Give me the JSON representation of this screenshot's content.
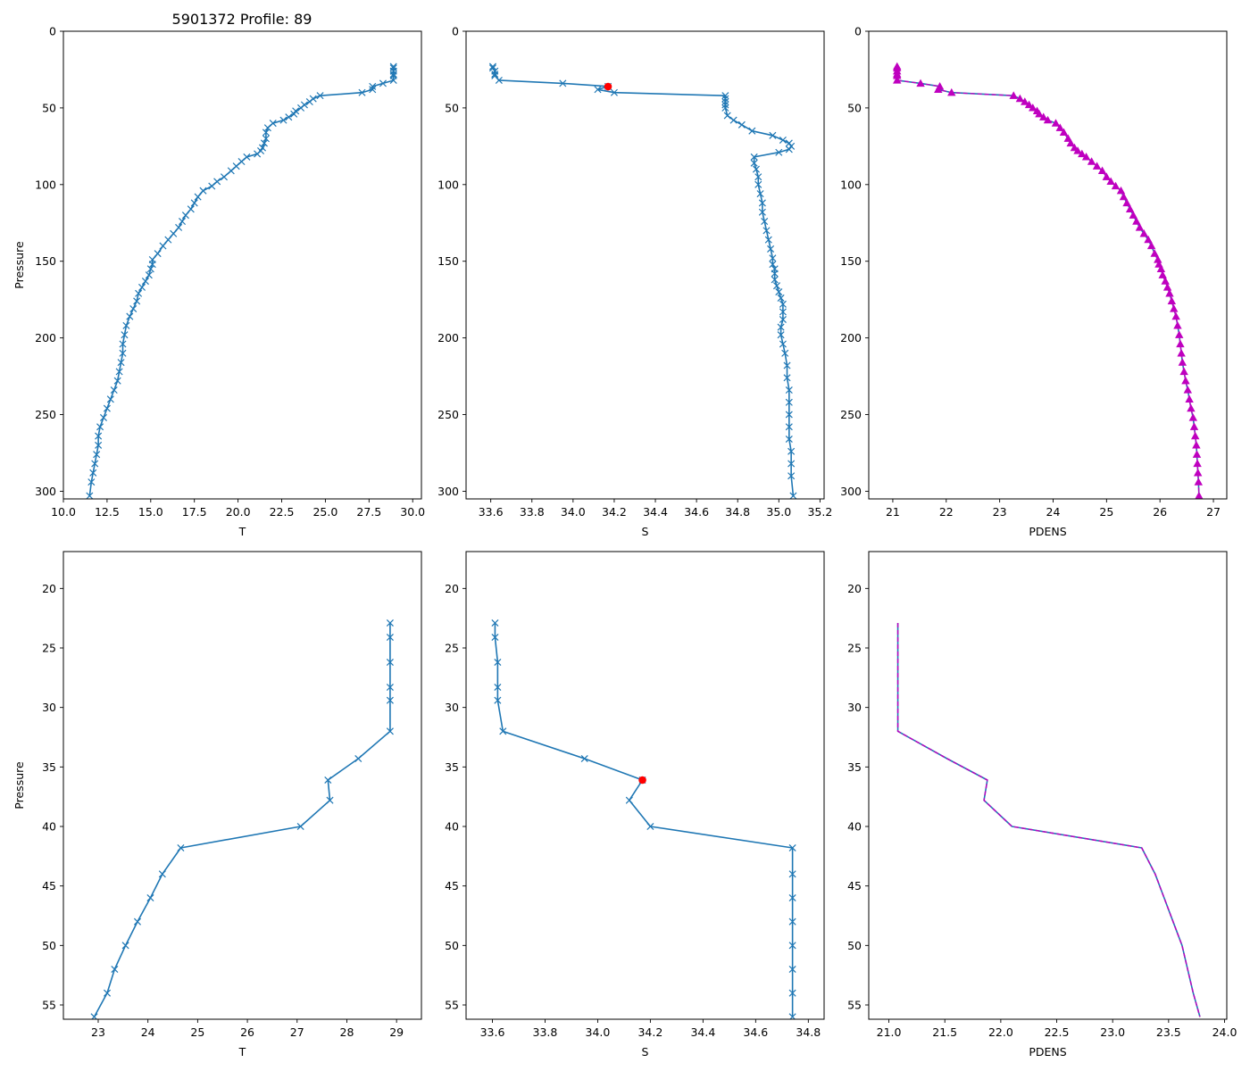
{
  "figure_title": "5901372 Profile: 89",
  "colors": {
    "series": "#1f77b4",
    "marker_highlight": "#ff0000",
    "density": "#bf00bf",
    "frame": "#000000"
  },
  "chart_data": [
    {
      "type": "line",
      "name": "temperature-full",
      "xlabel": "T",
      "ylabel": "Pressure",
      "xlim": [
        10,
        30.5
      ],
      "ylim": [
        305,
        0
      ],
      "xticks": [
        10.0,
        12.5,
        15.0,
        17.5,
        20.0,
        22.5,
        25.0,
        27.5,
        30.0
      ],
      "xtick_labels": [
        "10.0",
        "12.5",
        "15.0",
        "17.5",
        "20.0",
        "22.5",
        "25.0",
        "27.5",
        "30.0"
      ],
      "yticks": [
        0,
        50,
        100,
        150,
        200,
        250,
        300
      ],
      "ytick_labels": [
        "0",
        "50",
        "100",
        "150",
        "200",
        "250",
        "300"
      ],
      "series": [
        {
          "name": "T",
          "marker": "x",
          "x": [
            28.9,
            28.9,
            28.9,
            28.9,
            28.9,
            28.9,
            28.3,
            27.7,
            27.7,
            27.1,
            24.7,
            24.3,
            24.1,
            23.8,
            23.6,
            23.3,
            23.2,
            22.9,
            22.6,
            22.0,
            21.7,
            21.6,
            21.6,
            21.5,
            21.4,
            21.3,
            21.1,
            20.5,
            20.2,
            19.9,
            19.6,
            19.2,
            18.8,
            18.5,
            18.0,
            17.7,
            17.5,
            17.3,
            17.0,
            16.8,
            16.6,
            16.3,
            16.0,
            15.7,
            15.4,
            15.1,
            15.1,
            15.0,
            14.9,
            14.7,
            14.5,
            14.3,
            14.2,
            14.0,
            13.8,
            13.6,
            13.5,
            13.4,
            13.4,
            13.3,
            13.2,
            13.1,
            12.9,
            12.7,
            12.5,
            12.3,
            12.1,
            12.0,
            12.0,
            11.9,
            11.8,
            11.7,
            11.6,
            11.5
          ],
          "y": [
            23,
            24,
            26,
            28,
            29,
            32,
            34,
            36,
            38,
            40,
            42,
            44,
            46,
            48,
            50,
            52,
            54,
            56,
            58,
            60,
            63,
            66,
            70,
            73,
            76,
            78,
            80,
            82,
            85,
            88,
            91,
            95,
            98,
            101,
            104,
            108,
            112,
            116,
            120,
            124,
            128,
            132,
            136,
            140,
            145,
            149,
            152,
            155,
            159,
            163,
            167,
            171,
            176,
            181,
            186,
            192,
            198,
            204,
            210,
            216,
            222,
            228,
            234,
            240,
            246,
            252,
            258,
            264,
            270,
            276,
            282,
            288,
            294,
            303
          ]
        }
      ]
    },
    {
      "type": "line",
      "name": "salinity-full",
      "xlabel": "S",
      "ylabel": "",
      "xlim": [
        33.48,
        35.22
      ],
      "ylim": [
        305,
        0
      ],
      "xticks": [
        33.6,
        33.8,
        34.0,
        34.2,
        34.4,
        34.6,
        34.8,
        35.0,
        35.2
      ],
      "xtick_labels": [
        "33.6",
        "33.8",
        "34.0",
        "34.2",
        "34.4",
        "34.6",
        "34.8",
        "35.0",
        "35.2"
      ],
      "yticks": [
        0,
        50,
        100,
        150,
        200,
        250,
        300
      ],
      "ytick_labels": [
        "0",
        "50",
        "100",
        "150",
        "200",
        "250",
        "300"
      ],
      "highlight": {
        "x": 34.17,
        "y": 36.1
      },
      "series": [
        {
          "name": "S",
          "marker": "x",
          "x": [
            33.61,
            33.61,
            33.62,
            33.62,
            33.62,
            33.64,
            33.95,
            34.17,
            34.12,
            34.2,
            34.74,
            34.74,
            34.74,
            34.74,
            34.74,
            34.75,
            34.78,
            34.82,
            34.87,
            34.97,
            35.02,
            35.05,
            35.06,
            35.05,
            35.0,
            34.88,
            34.88,
            34.89,
            34.9,
            34.9,
            34.91,
            34.92,
            34.92,
            34.93,
            34.94,
            34.95,
            34.96,
            34.97,
            34.97,
            34.98,
            34.98,
            34.98,
            34.99,
            35.0,
            35.01,
            35.02,
            35.02,
            35.02,
            35.01,
            35.01,
            35.02,
            35.03,
            35.04,
            35.04,
            35.05,
            35.05,
            35.05,
            35.05,
            35.05,
            35.06,
            35.06,
            35.06,
            35.07
          ],
          "y": [
            23,
            24,
            26,
            28,
            29,
            32,
            34,
            36,
            38,
            40,
            42,
            44,
            46,
            48,
            50,
            55,
            58,
            61,
            65,
            68,
            71,
            73,
            75,
            77,
            79,
            82,
            86,
            90,
            95,
            100,
            106,
            112,
            118,
            124,
            130,
            136,
            142,
            148,
            152,
            155,
            158,
            162,
            166,
            170,
            174,
            178,
            183,
            188,
            193,
            198,
            204,
            210,
            218,
            226,
            234,
            242,
            250,
            258,
            266,
            274,
            282,
            290,
            303
          ]
        }
      ]
    },
    {
      "type": "line",
      "name": "density-full",
      "xlabel": "PDENS",
      "ylabel": "",
      "xlim": [
        20.55,
        27.25
      ],
      "ylim": [
        305,
        0
      ],
      "xticks": [
        21,
        22,
        23,
        24,
        25,
        26,
        27
      ],
      "xtick_labels": [
        "21",
        "22",
        "23",
        "24",
        "25",
        "26",
        "27"
      ],
      "yticks": [
        0,
        50,
        100,
        150,
        200,
        250,
        300
      ],
      "ytick_labels": [
        "0",
        "50",
        "100",
        "150",
        "200",
        "250",
        "300"
      ],
      "series": [
        {
          "name": "PDENS",
          "marker": "^",
          "x": [
            21.08,
            21.08,
            21.08,
            21.08,
            21.08,
            21.08,
            21.52,
            21.88,
            21.85,
            22.1,
            23.26,
            23.38,
            23.47,
            23.55,
            23.62,
            23.7,
            23.74,
            23.82,
            23.9,
            24.05,
            24.13,
            24.2,
            24.28,
            24.33,
            24.4,
            24.46,
            24.54,
            24.62,
            24.72,
            24.82,
            24.92,
            25.0,
            25.08,
            25.17,
            25.27,
            25.32,
            25.38,
            25.44,
            25.5,
            25.56,
            25.62,
            25.7,
            25.78,
            25.84,
            25.9,
            25.96,
            25.98,
            26.02,
            26.05,
            26.1,
            26.14,
            26.18,
            26.22,
            26.26,
            26.3,
            26.33,
            26.36,
            26.38,
            26.4,
            26.42,
            26.45,
            26.48,
            26.52,
            26.55,
            26.58,
            26.62,
            26.64,
            26.66,
            26.68,
            26.69,
            26.7,
            26.71,
            26.72,
            26.73
          ],
          "y": [
            23,
            24,
            26,
            28,
            29,
            32,
            34,
            36,
            38,
            40,
            42,
            44,
            46,
            48,
            50,
            52,
            54,
            56,
            58,
            60,
            63,
            66,
            70,
            73,
            76,
            78,
            80,
            82,
            85,
            88,
            91,
            95,
            98,
            101,
            104,
            108,
            112,
            116,
            120,
            124,
            128,
            132,
            136,
            140,
            145,
            149,
            152,
            155,
            159,
            163,
            167,
            171,
            176,
            181,
            186,
            192,
            198,
            204,
            210,
            216,
            222,
            228,
            234,
            240,
            246,
            252,
            258,
            264,
            270,
            276,
            282,
            288,
            294,
            303
          ]
        }
      ]
    },
    {
      "type": "line",
      "name": "temperature-zoom",
      "xlabel": "T",
      "ylabel": "Pressure",
      "xlim": [
        22.3,
        29.5
      ],
      "ylim": [
        56.2,
        16.9
      ],
      "xticks": [
        23,
        24,
        25,
        26,
        27,
        28,
        29
      ],
      "xtick_labels": [
        "23",
        "24",
        "25",
        "26",
        "27",
        "28",
        "29"
      ],
      "yticks": [
        20,
        25,
        30,
        35,
        40,
        45,
        50,
        55
      ],
      "ytick_labels": [
        "20",
        "25",
        "30",
        "35",
        "40",
        "45",
        "50",
        "55"
      ],
      "series": [
        {
          "name": "T",
          "marker": "x",
          "x": [
            28.87,
            28.87,
            28.87,
            28.87,
            28.87,
            28.87,
            28.23,
            27.62,
            27.66,
            27.07,
            24.66,
            24.29,
            24.05,
            23.79,
            23.55,
            23.33,
            23.18,
            22.92
          ],
          "y": [
            22.9,
            24.1,
            26.2,
            28.3,
            29.4,
            32.0,
            34.3,
            36.1,
            37.8,
            40.0,
            41.8,
            44.0,
            46.0,
            48.0,
            50.0,
            52.0,
            54.0,
            56.0
          ]
        }
      ]
    },
    {
      "type": "line",
      "name": "salinity-zoom",
      "xlabel": "S",
      "ylabel": "",
      "xlim": [
        33.5,
        34.86
      ],
      "ylim": [
        56.2,
        16.9
      ],
      "xticks": [
        33.6,
        33.8,
        34.0,
        34.2,
        34.4,
        34.6,
        34.8
      ],
      "xtick_labels": [
        "33.6",
        "33.8",
        "34.0",
        "34.2",
        "34.4",
        "34.6",
        "34.8"
      ],
      "yticks": [
        20,
        25,
        30,
        35,
        40,
        45,
        50,
        55
      ],
      "ytick_labels": [
        "20",
        "25",
        "30",
        "35",
        "40",
        "45",
        "50",
        "55"
      ],
      "highlight": {
        "x": 34.17,
        "y": 36.1
      },
      "series": [
        {
          "name": "S",
          "marker": "x",
          "x": [
            33.61,
            33.61,
            33.62,
            33.62,
            33.62,
            33.64,
            33.95,
            34.17,
            34.12,
            34.2,
            34.74,
            34.74,
            34.74,
            34.74,
            34.74,
            34.74,
            34.74,
            34.74
          ],
          "y": [
            22.9,
            24.1,
            26.2,
            28.3,
            29.4,
            32.0,
            34.3,
            36.1,
            37.8,
            40.0,
            41.8,
            44.0,
            46.0,
            48.0,
            50.0,
            52.0,
            54.0,
            56.0
          ]
        }
      ]
    },
    {
      "type": "line",
      "name": "density-zoom",
      "xlabel": "PDENS",
      "ylabel": "",
      "xlim": [
        20.82,
        24.02
      ],
      "ylim": [
        56.2,
        16.9
      ],
      "xticks": [
        21.0,
        21.5,
        22.0,
        22.5,
        23.0,
        23.5,
        24.0
      ],
      "xtick_labels": [
        "21.0",
        "21.5",
        "22.0",
        "22.5",
        "23.0",
        "23.5",
        "24.0"
      ],
      "yticks": [
        20,
        25,
        30,
        35,
        40,
        45,
        50,
        55
      ],
      "ytick_labels": [
        "20",
        "25",
        "30",
        "35",
        "40",
        "45",
        "50",
        "55"
      ],
      "overlay_dashed": true,
      "series": [
        {
          "name": "PDENS",
          "marker": "none",
          "x": [
            21.08,
            21.08,
            21.08,
            21.08,
            21.08,
            21.08,
            21.52,
            21.88,
            21.85,
            22.1,
            23.26,
            23.38,
            23.46,
            23.54,
            23.62,
            23.67,
            23.72,
            23.78
          ],
          "y": [
            22.9,
            24.1,
            26.2,
            28.3,
            29.4,
            32.0,
            34.3,
            36.1,
            37.8,
            40.0,
            41.8,
            44.0,
            46.0,
            48.0,
            50.0,
            52.0,
            54.0,
            56.0
          ]
        }
      ]
    }
  ]
}
